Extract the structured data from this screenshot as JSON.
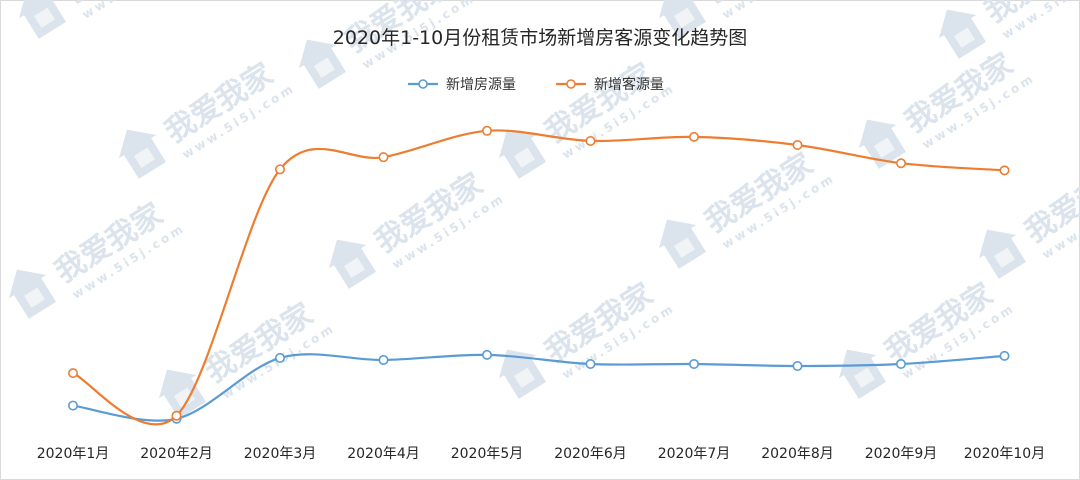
{
  "chart_data": {
    "type": "line",
    "title": "2020年1-10月份租赁市场新增房客源变化趋势图",
    "categories": [
      "2020年1月",
      "2020年2月",
      "2020年3月",
      "2020年4月",
      "2020年5月",
      "2020年6月",
      "2020年7月",
      "2020年8月",
      "2020年9月",
      "2020年10月"
    ],
    "series": [
      {
        "name": "新增房源量",
        "color": "#5b9bd5",
        "values": [
          30,
          17,
          77,
          75,
          80,
          71,
          71,
          69,
          71,
          79
        ]
      },
      {
        "name": "新增客源量",
        "color": "#ed7d31",
        "values": [
          62,
          20,
          263,
          275,
          301,
          291,
          295,
          287,
          269,
          262
        ]
      }
    ],
    "ylim": [
      0,
      430
    ],
    "grid": false,
    "legend_position": "top-center"
  },
  "watermark": {
    "text": "我爱我家",
    "url": "www.5i5j.com",
    "color": "#dbe3ec"
  }
}
